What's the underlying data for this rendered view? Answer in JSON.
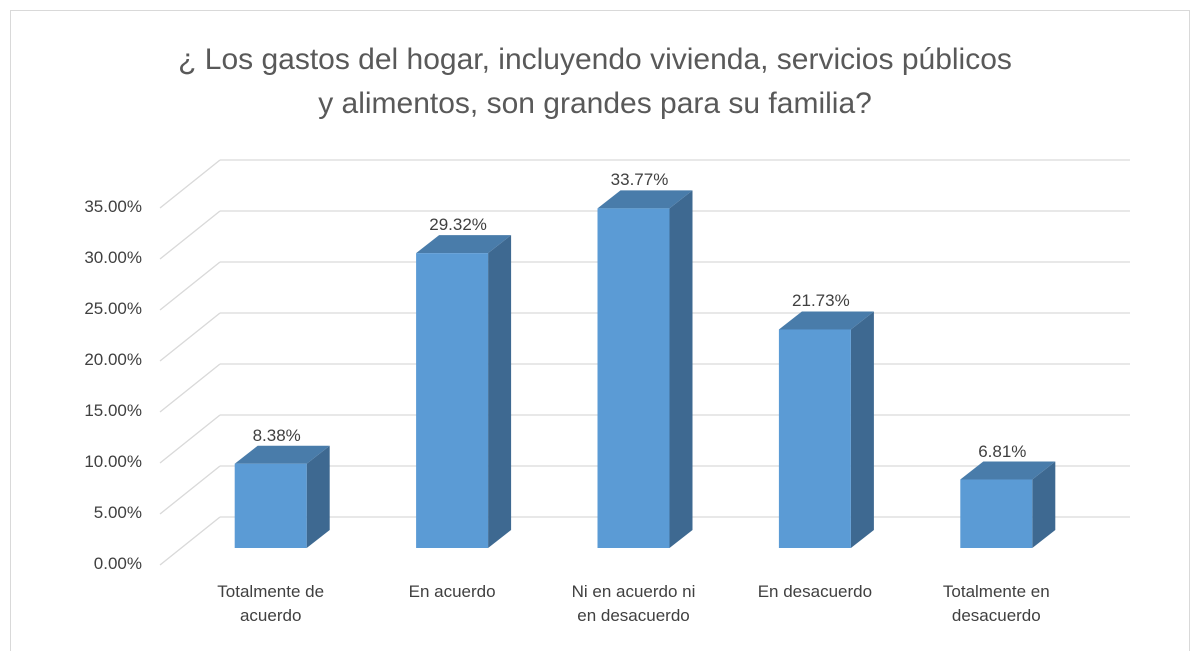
{
  "chart_data": {
    "type": "bar3d",
    "title": "¿ Los gastos del hogar, incluyendo vivienda, servicios públicos\ny alimentos, son grandes para su familia?",
    "categories": [
      "Totalmente de\nacuerdo",
      "En acuerdo",
      "Ni en acuerdo ni\nen desacuerdo",
      "En desacuerdo",
      "Totalmente en\ndesacuerdo"
    ],
    "values": [
      8.38,
      29.32,
      33.77,
      21.73,
      6.81
    ],
    "value_labels": [
      "8.38%",
      "29.32%",
      "33.77%",
      "21.73%",
      "6.81%"
    ],
    "color": "#5b9bd5",
    "ylim": [
      0,
      35
    ],
    "yticks": [
      {
        "value": 0,
        "label": "0.00%"
      },
      {
        "value": 5,
        "label": "5.00%"
      },
      {
        "value": 10,
        "label": "10.00%"
      },
      {
        "value": 15,
        "label": "15.00%"
      },
      {
        "value": 20,
        "label": "20.00%"
      },
      {
        "value": 25,
        "label": "25.00%"
      },
      {
        "value": 30,
        "label": "30.00%"
      },
      {
        "value": 35,
        "label": "35.00%"
      }
    ],
    "grid": true
  }
}
